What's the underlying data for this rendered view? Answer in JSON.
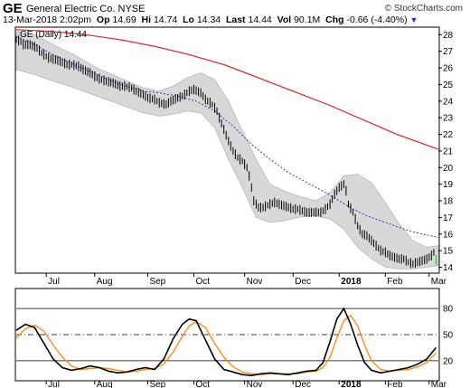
{
  "header": {
    "symbol": "GE",
    "company": "General Electric Co.",
    "exchange": "NYSE",
    "credit": "© StockCharts.com",
    "date": "13-Mar-2018 2:02pm",
    "open_label": "Op",
    "open": "14.69",
    "high_label": "Hi",
    "high": "14.74",
    "low_label": "Lo",
    "low": "14.34",
    "last_label": "Last",
    "last": "14.44",
    "vol_label": "Vol",
    "vol": "90.1M",
    "chg_label": "Chg",
    "chg": "-0.66 (-4.40%)"
  },
  "legend": {
    "text": "GE (Daily) 14.44"
  },
  "colors": {
    "ma_long": "#dd2222",
    "ma_short": "#3333aa",
    "bands": "#d8d8d8",
    "stoch_k": "#000000",
    "stoch_d": "#ff8c1a",
    "last_price": "#33aa33"
  },
  "chart_data": [
    {
      "type": "line",
      "indicators": [
        "Bollinger Bands (shaded)",
        "Moving average (blue dotted)",
        "Moving average (red)"
      ],
      "x_ticks": [
        "Jul",
        "Aug",
        "Sep",
        "Oct",
        "Nov",
        "Dec",
        "2018",
        "Feb",
        "Mar"
      ],
      "x_ticks_bold": [
        "2018"
      ],
      "y_ticks": [
        14,
        15,
        16,
        17,
        18,
        19,
        20,
        21,
        22,
        23,
        24,
        25,
        26,
        27,
        28
      ],
      "ylim": [
        13.7,
        28.4
      ],
      "grid": false,
      "price": [
        [
          0,
          27.7
        ],
        [
          2,
          27.6
        ],
        [
          3,
          27.4
        ],
        [
          6,
          27.4
        ],
        [
          9,
          27.2
        ],
        [
          11,
          26.9
        ],
        [
          14,
          26.6
        ],
        [
          17,
          26.5
        ],
        [
          19,
          26.4
        ],
        [
          22,
          26.2
        ],
        [
          24,
          26.2
        ],
        [
          27,
          26.1
        ],
        [
          29,
          25.9
        ],
        [
          32,
          25.7
        ],
        [
          35,
          25.4
        ],
        [
          37,
          25.3
        ],
        [
          39,
          25.2
        ],
        [
          42,
          25.1
        ],
        [
          45,
          24.9
        ],
        [
          47,
          24.9
        ],
        [
          50,
          24.8
        ],
        [
          52,
          24.6
        ],
        [
          55,
          24.4
        ],
        [
          57,
          24.2
        ],
        [
          60,
          24.1
        ],
        [
          62,
          23.9
        ],
        [
          65,
          23.8
        ],
        [
          67,
          24.0
        ],
        [
          70,
          24.2
        ],
        [
          72,
          24.3
        ],
        [
          75,
          24.6
        ],
        [
          77,
          24.7
        ],
        [
          80,
          24.5
        ],
        [
          82,
          24.1
        ],
        [
          85,
          23.8
        ],
        [
          87,
          23.4
        ],
        [
          88,
          23.0
        ],
        [
          90,
          22.3
        ],
        [
          92,
          21.6
        ],
        [
          94,
          21.0
        ],
        [
          96,
          20.6
        ],
        [
          98,
          20.4
        ],
        [
          100,
          20.0
        ],
        [
          101,
          19.5
        ],
        [
          102,
          18.8
        ],
        [
          103,
          18.0
        ],
        [
          105,
          17.6
        ],
        [
          107,
          17.6
        ],
        [
          110,
          17.8
        ],
        [
          112,
          17.9
        ],
        [
          114,
          17.8
        ],
        [
          116,
          17.7
        ],
        [
          118,
          17.6
        ],
        [
          120,
          17.5
        ],
        [
          122,
          17.5
        ],
        [
          124,
          17.4
        ],
        [
          126,
          17.3
        ],
        [
          128,
          17.3
        ],
        [
          130,
          17.3
        ],
        [
          132,
          17.3
        ],
        [
          134,
          17.5
        ],
        [
          136,
          17.8
        ],
        [
          138,
          18.4
        ],
        [
          140,
          18.8
        ],
        [
          142,
          19.0
        ],
        [
          143,
          18.6
        ],
        [
          144,
          17.8
        ],
        [
          146,
          17.3
        ],
        [
          148,
          16.5
        ],
        [
          150,
          16.0
        ],
        [
          152,
          15.9
        ],
        [
          154,
          15.6
        ],
        [
          156,
          15.3
        ],
        [
          158,
          15.0
        ],
        [
          160,
          14.9
        ],
        [
          162,
          14.7
        ],
        [
          164,
          14.6
        ],
        [
          166,
          14.5
        ],
        [
          168,
          14.5
        ],
        [
          170,
          14.3
        ],
        [
          172,
          14.2
        ],
        [
          174,
          14.3
        ],
        [
          176,
          14.4
        ],
        [
          178,
          14.5
        ],
        [
          180,
          14.7
        ],
        [
          181,
          14.9
        ],
        [
          182,
          14.44
        ]
      ],
      "bb_upper": [
        [
          0,
          28.2
        ],
        [
          8,
          28.0
        ],
        [
          16,
          27.4
        ],
        [
          25,
          26.8
        ],
        [
          35,
          26.0
        ],
        [
          45,
          25.4
        ],
        [
          55,
          24.8
        ],
        [
          62,
          24.6
        ],
        [
          68,
          24.9
        ],
        [
          74,
          25.4
        ],
        [
          80,
          25.7
        ],
        [
          86,
          25.3
        ],
        [
          92,
          24.0
        ],
        [
          98,
          22.2
        ],
        [
          104,
          20.5
        ],
        [
          110,
          19.0
        ],
        [
          116,
          18.6
        ],
        [
          122,
          18.3
        ],
        [
          130,
          18.0
        ],
        [
          136,
          18.5
        ],
        [
          142,
          19.5
        ],
        [
          148,
          19.6
        ],
        [
          154,
          19.1
        ],
        [
          160,
          17.9
        ],
        [
          166,
          16.6
        ],
        [
          172,
          15.6
        ],
        [
          178,
          15.2
        ],
        [
          183,
          15.3
        ]
      ],
      "bb_lower": [
        [
          0,
          25.9
        ],
        [
          8,
          25.6
        ],
        [
          16,
          25.2
        ],
        [
          25,
          24.8
        ],
        [
          35,
          24.3
        ],
        [
          45,
          23.8
        ],
        [
          55,
          23.3
        ],
        [
          62,
          23.1
        ],
        [
          68,
          23.2
        ],
        [
          74,
          23.4
        ],
        [
          80,
          23.3
        ],
        [
          86,
          22.4
        ],
        [
          92,
          20.5
        ],
        [
          98,
          18.8
        ],
        [
          104,
          17.0
        ],
        [
          110,
          16.7
        ],
        [
          116,
          16.8
        ],
        [
          122,
          17.0
        ],
        [
          130,
          17.1
        ],
        [
          136,
          16.9
        ],
        [
          142,
          16.3
        ],
        [
          148,
          15.2
        ],
        [
          154,
          14.5
        ],
        [
          160,
          14.0
        ],
        [
          166,
          13.9
        ],
        [
          172,
          13.9
        ],
        [
          178,
          14.0
        ],
        [
          183,
          14.1
        ]
      ],
      "ma_short": [
        [
          0,
          27.9
        ],
        [
          8,
          27.4
        ],
        [
          16,
          26.8
        ],
        [
          25,
          26.2
        ],
        [
          35,
          25.6
        ],
        [
          45,
          25.0
        ],
        [
          55,
          24.6
        ],
        [
          62,
          24.5
        ],
        [
          70,
          24.3
        ],
        [
          78,
          24.0
        ],
        [
          86,
          23.4
        ],
        [
          94,
          22.5
        ],
        [
          102,
          21.4
        ],
        [
          110,
          20.5
        ],
        [
          118,
          19.7
        ],
        [
          126,
          19.1
        ],
        [
          134,
          18.5
        ],
        [
          140,
          18.0
        ],
        [
          146,
          17.5
        ],
        [
          152,
          17.1
        ],
        [
          158,
          16.8
        ],
        [
          164,
          16.5
        ],
        [
          170,
          16.2
        ],
        [
          176,
          16.0
        ],
        [
          183,
          15.8
        ]
      ],
      "ma_long": [
        [
          0,
          28.3
        ],
        [
          15,
          28.2
        ],
        [
          30,
          28.0
        ],
        [
          45,
          27.7
        ],
        [
          60,
          27.3
        ],
        [
          75,
          26.8
        ],
        [
          90,
          26.2
        ],
        [
          105,
          25.4
        ],
        [
          120,
          24.6
        ],
        [
          135,
          23.8
        ],
        [
          150,
          22.9
        ],
        [
          165,
          22.0
        ],
        [
          183,
          21.1
        ]
      ]
    },
    {
      "type": "line",
      "indicator": "Stochastic oscillator",
      "y_ticks": [
        20,
        50,
        80
      ],
      "ylim": [
        -2,
        102
      ],
      "x_ticks": [
        "Jul",
        "Aug",
        "Sep",
        "Oct",
        "Nov",
        "Dec",
        "2018",
        "Feb",
        "Mar"
      ],
      "k": [
        [
          0,
          55
        ],
        [
          4,
          62
        ],
        [
          8,
          58
        ],
        [
          12,
          40
        ],
        [
          16,
          22
        ],
        [
          20,
          12
        ],
        [
          24,
          9
        ],
        [
          28,
          11
        ],
        [
          32,
          14
        ],
        [
          36,
          12
        ],
        [
          40,
          8
        ],
        [
          44,
          6
        ],
        [
          48,
          7
        ],
        [
          52,
          10
        ],
        [
          56,
          12
        ],
        [
          60,
          10
        ],
        [
          64,
          22
        ],
        [
          68,
          45
        ],
        [
          72,
          62
        ],
        [
          75,
          68
        ],
        [
          78,
          66
        ],
        [
          82,
          44
        ],
        [
          86,
          22
        ],
        [
          90,
          10
        ],
        [
          94,
          7
        ],
        [
          98,
          4
        ],
        [
          102,
          3
        ],
        [
          106,
          5
        ],
        [
          110,
          6
        ],
        [
          114,
          5
        ],
        [
          118,
          4
        ],
        [
          122,
          6
        ],
        [
          126,
          8
        ],
        [
          130,
          9
        ],
        [
          133,
          18
        ],
        [
          136,
          42
        ],
        [
          139,
          68
        ],
        [
          142,
          80
        ],
        [
          145,
          62
        ],
        [
          148,
          38
        ],
        [
          151,
          18
        ],
        [
          154,
          9
        ],
        [
          158,
          6
        ],
        [
          162,
          8
        ],
        [
          166,
          10
        ],
        [
          170,
          12
        ],
        [
          174,
          16
        ],
        [
          178,
          22
        ],
        [
          182,
          35
        ]
      ],
      "d": [
        [
          0,
          46
        ],
        [
          4,
          57
        ],
        [
          8,
          61
        ],
        [
          12,
          54
        ],
        [
          16,
          38
        ],
        [
          20,
          24
        ],
        [
          24,
          14
        ],
        [
          28,
          10
        ],
        [
          32,
          11
        ],
        [
          36,
          12
        ],
        [
          40,
          11
        ],
        [
          44,
          9
        ],
        [
          48,
          7
        ],
        [
          52,
          8
        ],
        [
          56,
          10
        ],
        [
          60,
          11
        ],
        [
          64,
          16
        ],
        [
          68,
          30
        ],
        [
          72,
          48
        ],
        [
          75,
          60
        ],
        [
          78,
          65
        ],
        [
          82,
          58
        ],
        [
          86,
          40
        ],
        [
          90,
          24
        ],
        [
          94,
          13
        ],
        [
          98,
          7
        ],
        [
          102,
          5
        ],
        [
          106,
          4
        ],
        [
          110,
          5
        ],
        [
          114,
          5
        ],
        [
          118,
          5
        ],
        [
          122,
          5
        ],
        [
          126,
          7
        ],
        [
          130,
          8
        ],
        [
          133,
          12
        ],
        [
          136,
          24
        ],
        [
          139,
          46
        ],
        [
          142,
          66
        ],
        [
          145,
          72
        ],
        [
          148,
          60
        ],
        [
          151,
          38
        ],
        [
          154,
          20
        ],
        [
          158,
          10
        ],
        [
          162,
          8
        ],
        [
          166,
          9
        ],
        [
          170,
          10
        ],
        [
          174,
          13
        ],
        [
          178,
          18
        ],
        [
          182,
          29
        ]
      ]
    }
  ]
}
